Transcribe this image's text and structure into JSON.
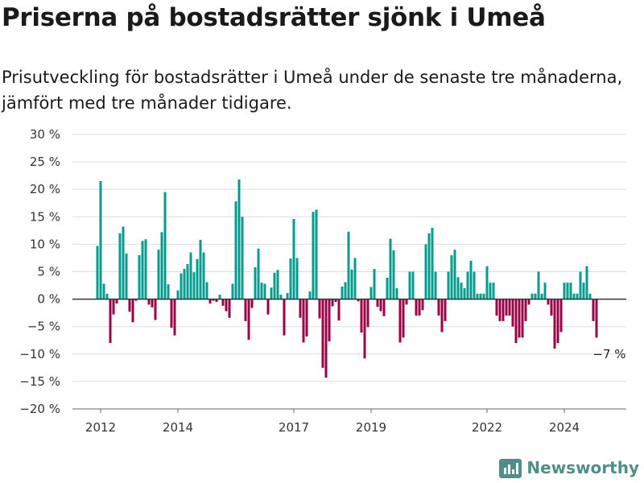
{
  "header": {
    "title": "Priserna på bostadsrätter sjönk i Umeå",
    "subtitle": "Prisutveckling för bostadsrätter i Umeå under de senaste tre månaderna, jämfört med tre månader tidigare."
  },
  "brand": {
    "name": "Newsworthy",
    "color": "#4f8f88"
  },
  "colors": {
    "positive": "#009c8f",
    "negative": "#9a0045",
    "grid": "#dddddd",
    "zero": "#333333"
  },
  "chart_data": {
    "type": "bar",
    "title": "Priserna på bostadsrätter sjönk i Umeå",
    "subtitle": "Prisutveckling för bostadsrätter i Umeå under de senaste tre månaderna, jämfört med tre månader tidigare.",
    "xlabel": "",
    "ylabel": "",
    "ylim": [
      -20,
      30
    ],
    "y_ticks": [
      {
        "value": 30,
        "label": "30 %"
      },
      {
        "value": 25,
        "label": "25 %"
      },
      {
        "value": 20,
        "label": "20 %"
      },
      {
        "value": 15,
        "label": "15 %"
      },
      {
        "value": 10,
        "label": "10 %"
      },
      {
        "value": 5,
        "label": "5 %"
      },
      {
        "value": 0,
        "label": "0 %"
      },
      {
        "value": -5,
        "label": "−5 %"
      },
      {
        "value": -10,
        "label": "−10 %"
      },
      {
        "value": -15,
        "label": "−15 %"
      },
      {
        "value": -20,
        "label": "−20 %"
      }
    ],
    "x_ticks": [
      "2012",
      "2014",
      "2017",
      "2019",
      "2022",
      "2024"
    ],
    "x_start": "2011-12",
    "x_end": "2025-01",
    "grid": true,
    "annotation": {
      "text": "−7 %",
      "x": "2024-10"
    },
    "series": [
      {
        "points": [
          {
            "x": "2011-12",
            "y": 9.7
          },
          {
            "x": "2012-01",
            "y": 21.5
          },
          {
            "x": "2012-02",
            "y": 2.8
          },
          {
            "x": "2012-03",
            "y": 1
          },
          {
            "x": "2012-04",
            "y": -8
          },
          {
            "x": "2012-05",
            "y": -2.8
          },
          {
            "x": "2012-06",
            "y": -0.8
          },
          {
            "x": "2012-07",
            "y": 12
          },
          {
            "x": "2012-08",
            "y": 13.2
          },
          {
            "x": "2012-09",
            "y": 8.3
          },
          {
            "x": "2012-10",
            "y": -2.3
          },
          {
            "x": "2012-11",
            "y": -4.2
          },
          {
            "x": "2012-12",
            "y": -0.3
          },
          {
            "x": "2013-01",
            "y": 8
          },
          {
            "x": "2013-02",
            "y": 10.6
          },
          {
            "x": "2013-03",
            "y": 10.9
          },
          {
            "x": "2013-04",
            "y": -1
          },
          {
            "x": "2013-05",
            "y": -1.5
          },
          {
            "x": "2013-06",
            "y": -3.8
          },
          {
            "x": "2013-07",
            "y": 9
          },
          {
            "x": "2013-08",
            "y": 12.2
          },
          {
            "x": "2013-09",
            "y": 19.5
          },
          {
            "x": "2013-10",
            "y": 2.7
          },
          {
            "x": "2013-11",
            "y": -5.2
          },
          {
            "x": "2013-12",
            "y": -6.6
          },
          {
            "x": "2014-01",
            "y": 1.6
          },
          {
            "x": "2014-02",
            "y": 4.7
          },
          {
            "x": "2014-03",
            "y": 5.5
          },
          {
            "x": "2014-04",
            "y": 6.4
          },
          {
            "x": "2014-05",
            "y": 8.5
          },
          {
            "x": "2014-06",
            "y": 4.9
          },
          {
            "x": "2014-07",
            "y": 7.3
          },
          {
            "x": "2014-08",
            "y": 10.8
          },
          {
            "x": "2014-09",
            "y": 8.5
          },
          {
            "x": "2014-10",
            "y": 3.1
          },
          {
            "x": "2014-11",
            "y": -0.8
          },
          {
            "x": "2014-12",
            "y": -0.3
          },
          {
            "x": "2015-01",
            "y": -0.5
          },
          {
            "x": "2015-02",
            "y": 0.8
          },
          {
            "x": "2015-03",
            "y": -1.2
          },
          {
            "x": "2015-04",
            "y": -2.2
          },
          {
            "x": "2015-05",
            "y": -3.4
          },
          {
            "x": "2015-06",
            "y": 2.8
          },
          {
            "x": "2015-07",
            "y": 17.8
          },
          {
            "x": "2015-08",
            "y": 21.8
          },
          {
            "x": "2015-09",
            "y": 15
          },
          {
            "x": "2015-10",
            "y": -4
          },
          {
            "x": "2015-11",
            "y": -7.4
          },
          {
            "x": "2015-12",
            "y": -1.6
          },
          {
            "x": "2016-01",
            "y": 5.8
          },
          {
            "x": "2016-02",
            "y": 9.2
          },
          {
            "x": "2016-03",
            "y": 3
          },
          {
            "x": "2016-04",
            "y": 2.8
          },
          {
            "x": "2016-05",
            "y": -2.8
          },
          {
            "x": "2016-06",
            "y": 2.1
          },
          {
            "x": "2016-07",
            "y": 4.8
          },
          {
            "x": "2016-08",
            "y": 5.3
          },
          {
            "x": "2016-09",
            "y": 0.8
          },
          {
            "x": "2016-10",
            "y": -6.6
          },
          {
            "x": "2016-11",
            "y": 1.1
          },
          {
            "x": "2016-12",
            "y": 7.4
          },
          {
            "x": "2017-01",
            "y": 14.6
          },
          {
            "x": "2017-02",
            "y": 7.5
          },
          {
            "x": "2017-03",
            "y": -3.4
          },
          {
            "x": "2017-04",
            "y": -7.9
          },
          {
            "x": "2017-05",
            "y": -6.8
          },
          {
            "x": "2017-06",
            "y": 1.4
          },
          {
            "x": "2017-07",
            "y": 15.9
          },
          {
            "x": "2017-08",
            "y": 16.3
          },
          {
            "x": "2017-09",
            "y": -3.5
          },
          {
            "x": "2017-10",
            "y": -12.5
          },
          {
            "x": "2017-11",
            "y": -14.3
          },
          {
            "x": "2017-12",
            "y": -7.7
          },
          {
            "x": "2018-01",
            "y": -1.3
          },
          {
            "x": "2018-02",
            "y": -0.5
          },
          {
            "x": "2018-03",
            "y": -3.9
          },
          {
            "x": "2018-04",
            "y": 2.3
          },
          {
            "x": "2018-05",
            "y": 3.1
          },
          {
            "x": "2018-06",
            "y": 12.3
          },
          {
            "x": "2018-07",
            "y": 5.4
          },
          {
            "x": "2018-08",
            "y": 7.5
          },
          {
            "x": "2018-09",
            "y": -0.4
          },
          {
            "x": "2018-10",
            "y": -6.1
          },
          {
            "x": "2018-11",
            "y": -10.8
          },
          {
            "x": "2018-12",
            "y": -5.1
          },
          {
            "x": "2019-01",
            "y": 2.2
          },
          {
            "x": "2019-02",
            "y": 5.5
          },
          {
            "x": "2019-03",
            "y": -1.4
          },
          {
            "x": "2019-04",
            "y": -2.2
          },
          {
            "x": "2019-05",
            "y": -3.1
          },
          {
            "x": "2019-06",
            "y": 3.9
          },
          {
            "x": "2019-07",
            "y": 11
          },
          {
            "x": "2019-08",
            "y": 8.9
          },
          {
            "x": "2019-09",
            "y": 2
          },
          {
            "x": "2019-10",
            "y": -7.9
          },
          {
            "x": "2019-11",
            "y": -7
          },
          {
            "x": "2019-12",
            "y": -1
          },
          {
            "x": "2020-01",
            "y": 5
          },
          {
            "x": "2020-02",
            "y": 5
          },
          {
            "x": "2020-03",
            "y": -3
          },
          {
            "x": "2020-04",
            "y": -3
          },
          {
            "x": "2020-05",
            "y": -2
          },
          {
            "x": "2020-06",
            "y": 10
          },
          {
            "x": "2020-07",
            "y": 12
          },
          {
            "x": "2020-08",
            "y": 13
          },
          {
            "x": "2020-09",
            "y": 5
          },
          {
            "x": "2020-10",
            "y": -3
          },
          {
            "x": "2020-11",
            "y": -6
          },
          {
            "x": "2020-12",
            "y": -4
          },
          {
            "x": "2021-01",
            "y": 5
          },
          {
            "x": "2021-02",
            "y": 8
          },
          {
            "x": "2021-03",
            "y": 9
          },
          {
            "x": "2021-04",
            "y": 4
          },
          {
            "x": "2021-05",
            "y": 3
          },
          {
            "x": "2021-06",
            "y": 2
          },
          {
            "x": "2021-07",
            "y": 5
          },
          {
            "x": "2021-08",
            "y": 7
          },
          {
            "x": "2021-09",
            "y": 5
          },
          {
            "x": "2021-10",
            "y": 1
          },
          {
            "x": "2021-11",
            "y": 1
          },
          {
            "x": "2021-12",
            "y": 1
          },
          {
            "x": "2022-01",
            "y": 6
          },
          {
            "x": "2022-02",
            "y": 3
          },
          {
            "x": "2022-03",
            "y": 3
          },
          {
            "x": "2022-04",
            "y": -3
          },
          {
            "x": "2022-05",
            "y": -4
          },
          {
            "x": "2022-06",
            "y": -4
          },
          {
            "x": "2022-07",
            "y": -3
          },
          {
            "x": "2022-08",
            "y": -3
          },
          {
            "x": "2022-09",
            "y": -5
          },
          {
            "x": "2022-10",
            "y": -8
          },
          {
            "x": "2022-11",
            "y": -7
          },
          {
            "x": "2022-12",
            "y": -7
          },
          {
            "x": "2023-01",
            "y": -4
          },
          {
            "x": "2023-02",
            "y": -1
          },
          {
            "x": "2023-03",
            "y": 1
          },
          {
            "x": "2023-04",
            "y": 1
          },
          {
            "x": "2023-05",
            "y": 5
          },
          {
            "x": "2023-06",
            "y": 1
          },
          {
            "x": "2023-07",
            "y": 3
          },
          {
            "x": "2023-08",
            "y": -1
          },
          {
            "x": "2023-09",
            "y": -3
          },
          {
            "x": "2023-10",
            "y": -9
          },
          {
            "x": "2023-11",
            "y": -8
          },
          {
            "x": "2023-12",
            "y": -6
          },
          {
            "x": "2024-01",
            "y": 3
          },
          {
            "x": "2024-02",
            "y": 3
          },
          {
            "x": "2024-03",
            "y": 3
          },
          {
            "x": "2024-04",
            "y": 1
          },
          {
            "x": "2024-05",
            "y": 1
          },
          {
            "x": "2024-06",
            "y": 5
          },
          {
            "x": "2024-07",
            "y": 3
          },
          {
            "x": "2024-08",
            "y": 6
          },
          {
            "x": "2024-09",
            "y": 1
          },
          {
            "x": "2024-10",
            "y": -4
          },
          {
            "x": "2024-11",
            "y": -7
          }
        ]
      }
    ]
  }
}
